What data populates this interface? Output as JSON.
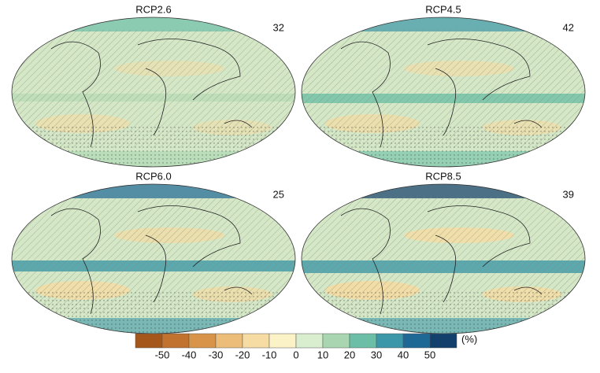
{
  "panels": [
    {
      "label": "RCP2.6",
      "number": "32"
    },
    {
      "label": "RCP4.5",
      "number": "42"
    },
    {
      "label": "RCP6.0",
      "number": "25"
    },
    {
      "label": "RCP8.5",
      "number": "39"
    }
  ],
  "colorbar": {
    "ticks": [
      -50,
      -40,
      -30,
      -20,
      -10,
      0,
      10,
      20,
      30,
      40,
      50
    ],
    "unit": "(%)",
    "colors": [
      "#a5561a",
      "#c0722e",
      "#d8954a",
      "#ebbd78",
      "#f6dca3",
      "#fbf2c8",
      "#d9edcf",
      "#a9d6b0",
      "#6cbfa6",
      "#3c97a8",
      "#1e6896",
      "#123f6b"
    ]
  }
}
